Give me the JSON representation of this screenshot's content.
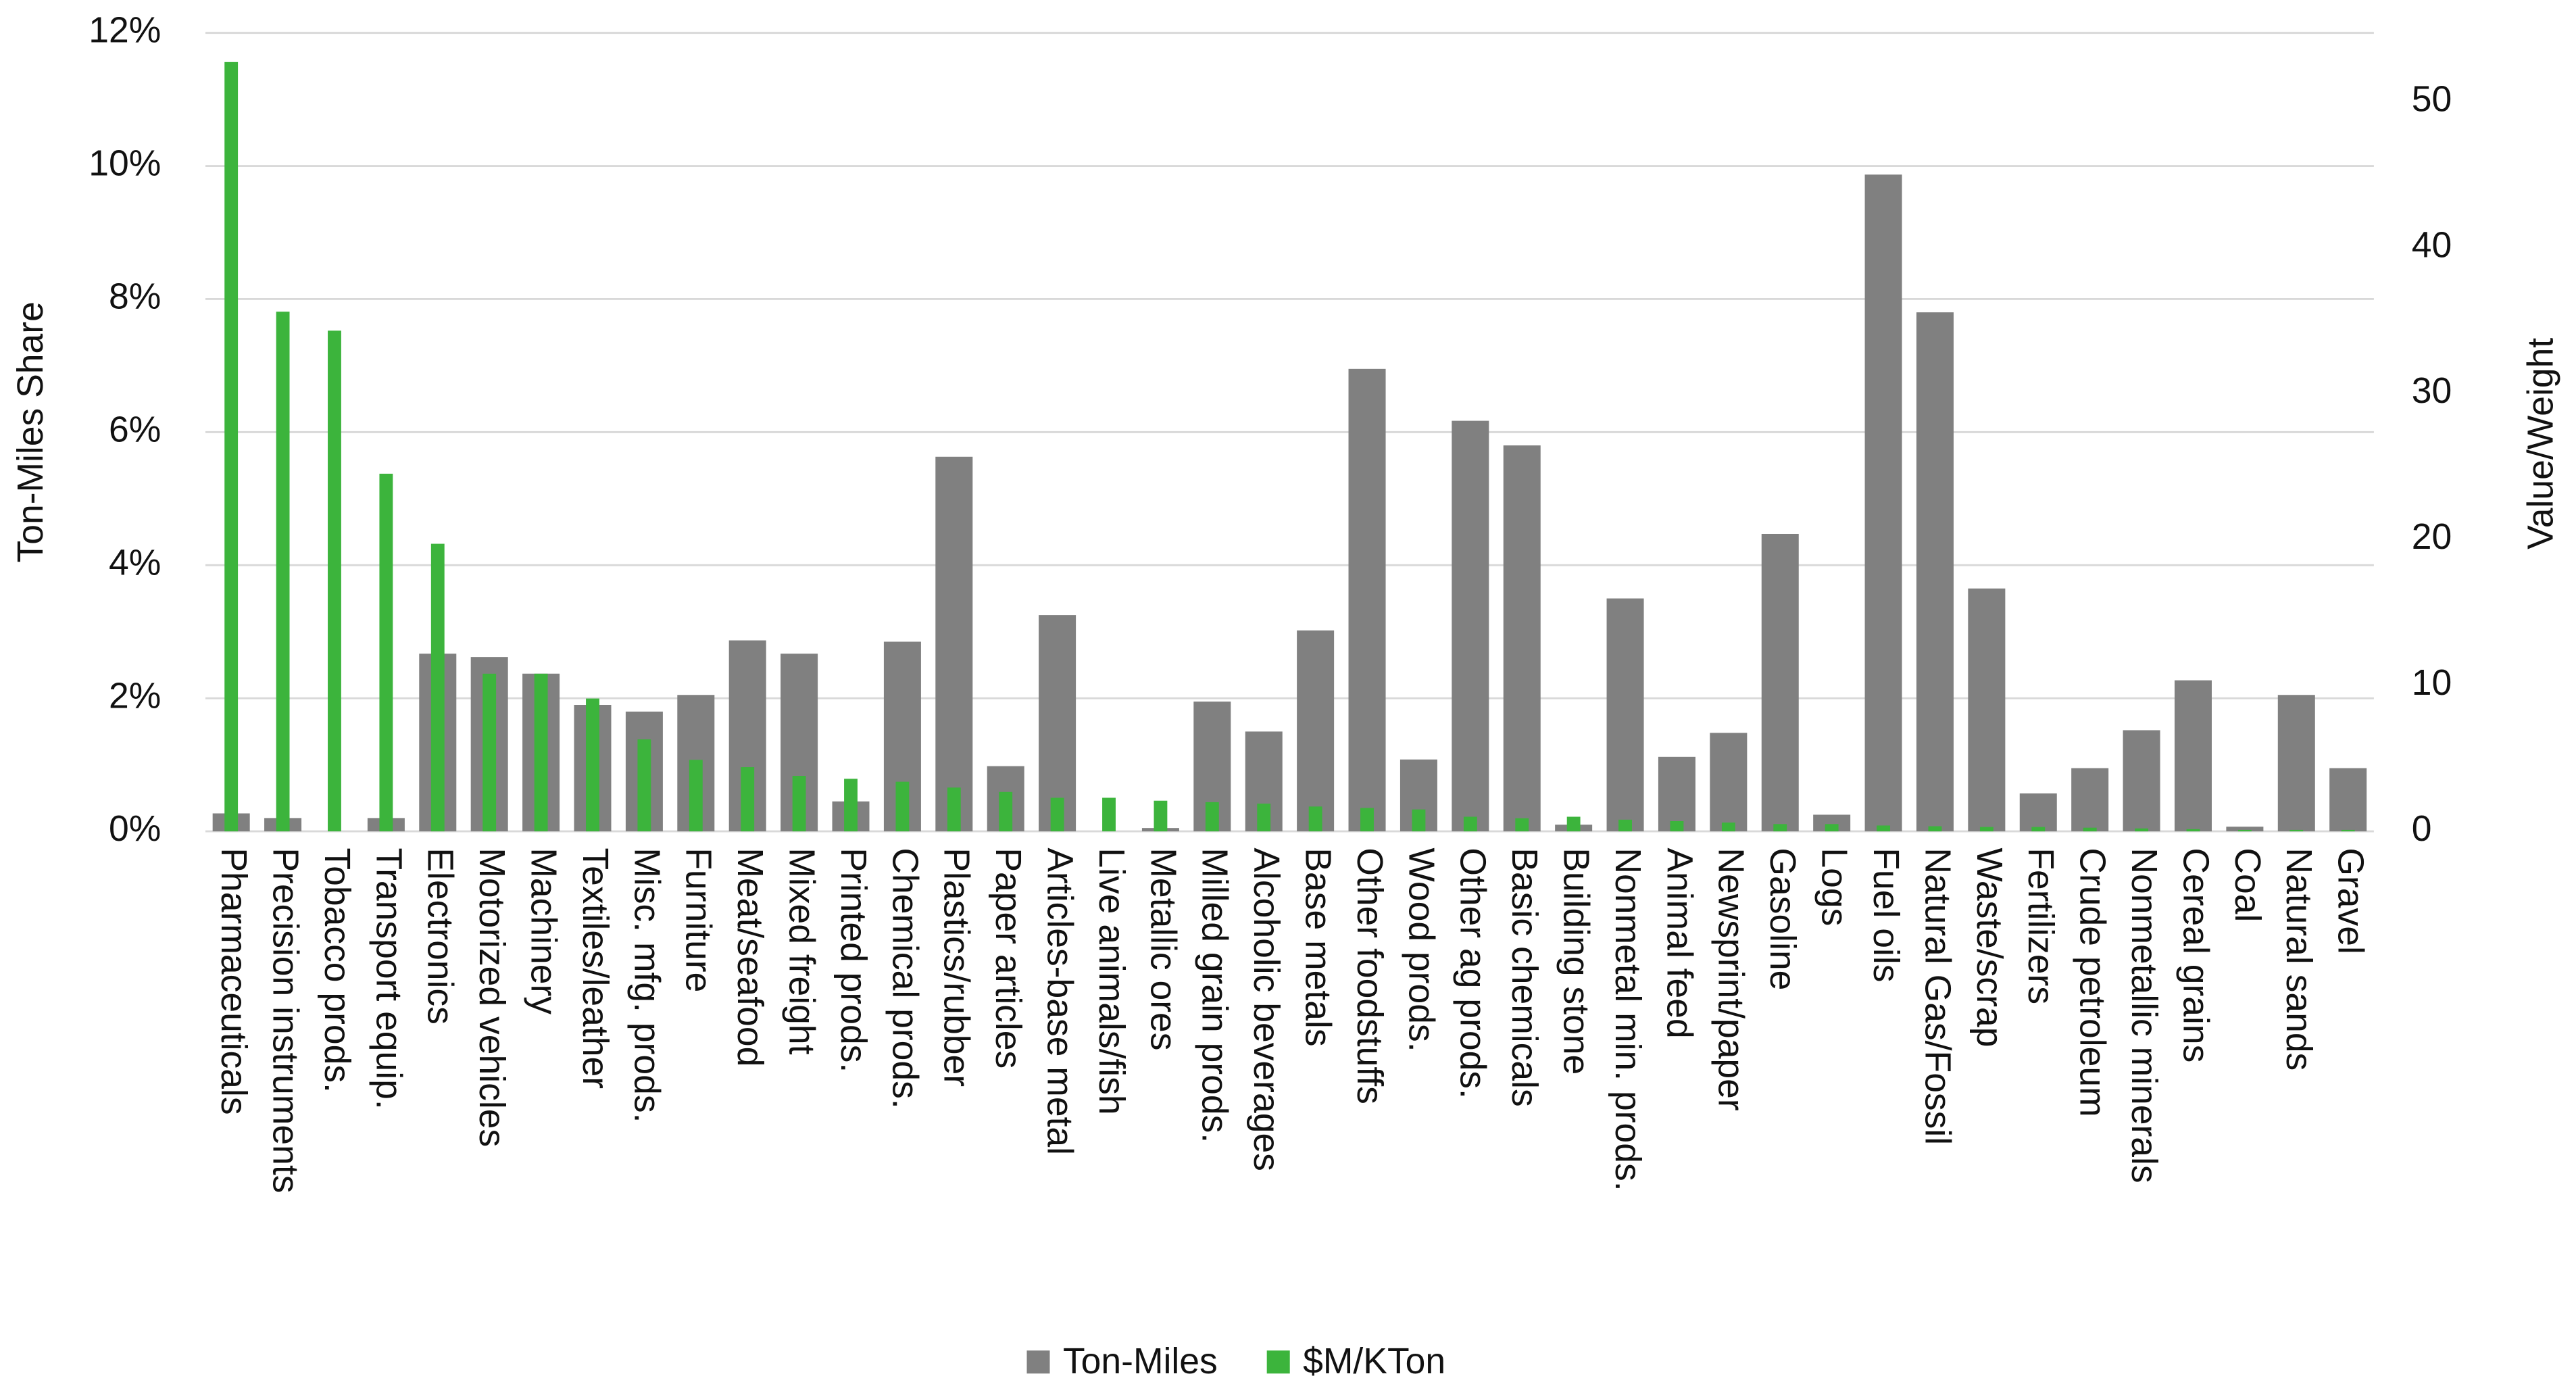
{
  "chart_data": {
    "type": "bar",
    "categories": [
      "Pharmaceuticals",
      "Precision instruments",
      "Tobacco prods.",
      "Transport equip.",
      "Electronics",
      "Motorized vehicles",
      "Machinery",
      "Textiles/leather",
      "Misc. mfg. prods.",
      "Furniture",
      "Meat/seafood",
      "Mixed freight",
      "Printed prods.",
      "Chemical prods.",
      "Plastics/rubber",
      "Paper articles",
      "Articles-base metal",
      "Live animals/fish",
      "Metallic ores",
      "Milled grain prods.",
      "Alcoholic beverages",
      "Base metals",
      "Other foodstuffs",
      "Wood prods.",
      "Other ag prods.",
      "Basic chemicals",
      "Building stone",
      "Nonmetal min. prods.",
      "Animal feed",
      "Newsprint/paper",
      "Gasoline",
      "Logs",
      "Fuel oils",
      "Natural Gas/Fossil",
      "Waste/scrap",
      "Fertilizers",
      "Crude petroleum",
      "Nonmetallic minerals",
      "Cereal grains",
      "Coal",
      "Natural sands",
      "Gravel"
    ],
    "series": [
      {
        "name": "Ton-Miles",
        "color": "#808080",
        "values": [
          0.27,
          0.2,
          0,
          0.2,
          2.67,
          2.62,
          2.37,
          1.9,
          1.8,
          2.05,
          2.87,
          2.67,
          0.45,
          2.85,
          5.63,
          0.98,
          3.25,
          0,
          0.05,
          1.95,
          1.5,
          3.02,
          6.95,
          1.08,
          6.17,
          5.8,
          0.1,
          3.5,
          1.12,
          1.48,
          4.47,
          0.25,
          9.87,
          7.8,
          3.65,
          0.57,
          0.95,
          1.52,
          2.27,
          0.07,
          2.05,
          0.95
        ]
      },
      {
        "name": "$M/KTon",
        "color": "#3cb43c",
        "axis": "y2",
        "values": [
          52.7,
          35.6,
          34.3,
          24.5,
          19.7,
          10.8,
          10.8,
          9.1,
          6.3,
          4.9,
          4.4,
          3.8,
          3.6,
          3.4,
          3.0,
          2.7,
          2.3,
          2.3,
          2.1,
          2.0,
          1.9,
          1.7,
          1.6,
          1.5,
          1.0,
          0.9,
          1.0,
          0.8,
          0.7,
          0.6,
          0.5,
          0.5,
          0.4,
          0.35,
          0.3,
          0.3,
          0.25,
          0.2,
          0.15,
          0.1,
          0.1,
          0.1
        ]
      }
    ],
    "y_label": "Ton-Miles Share",
    "y2_label": "Value/Weight",
    "ylim": [
      0,
      12
    ],
    "yticks": [
      {
        "value": 0,
        "label": "0%"
      },
      {
        "value": 2,
        "label": "2%"
      },
      {
        "value": 4,
        "label": "4%"
      },
      {
        "value": 6,
        "label": "6%"
      },
      {
        "value": 8,
        "label": "8%"
      },
      {
        "value": 10,
        "label": "10%"
      },
      {
        "value": 12,
        "label": "12%"
      }
    ],
    "y2lim": [
      0,
      54.7
    ],
    "y2ticks": [
      0,
      10,
      20,
      30,
      40,
      50
    ],
    "grid": true,
    "legend": "bottom"
  }
}
